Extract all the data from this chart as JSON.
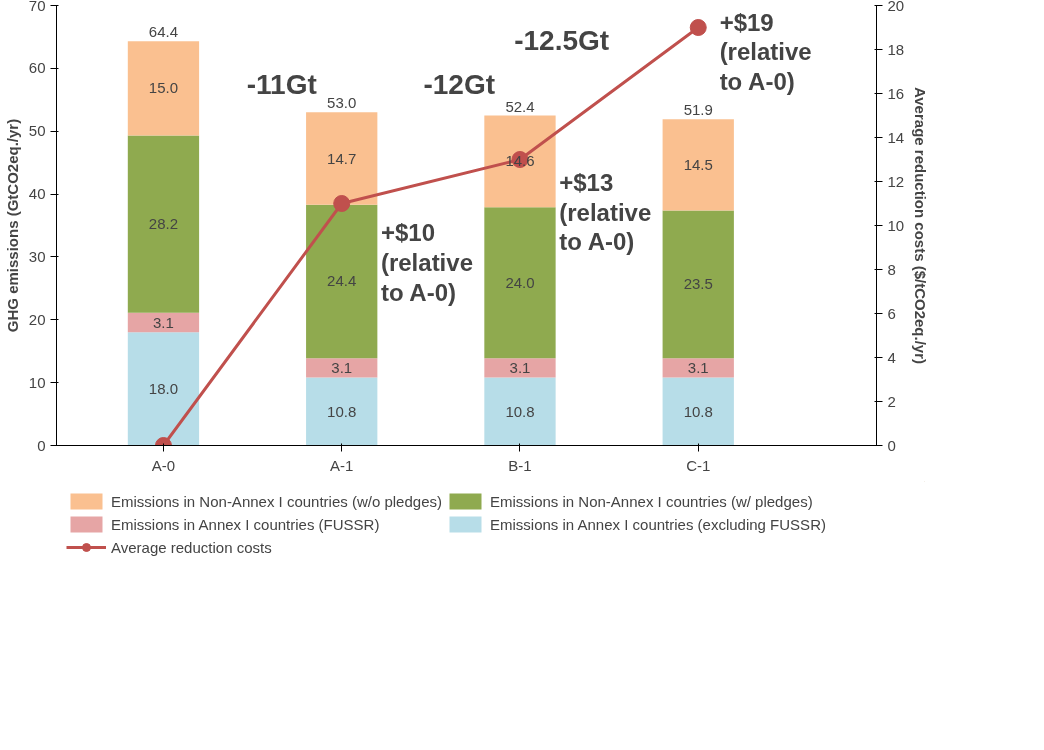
{
  "chart_data": {
    "type": "bar",
    "stacked": true,
    "categories": [
      "A-0",
      "A-1",
      "B-1",
      "C-1"
    ],
    "ylabel": "GHG emissions (GtCO2eq./yr)",
    "y2label": "Average reduction costs ($/tCO2eq./yr)",
    "ylim": [
      0,
      70
    ],
    "yticks": [
      0,
      10,
      20,
      30,
      40,
      50,
      60,
      70
    ],
    "y2lim": [
      0,
      20
    ],
    "y2ticks": [
      0,
      2,
      4,
      6,
      8,
      10,
      12,
      14,
      16,
      18,
      20
    ],
    "grid": false,
    "legend": "bottom",
    "series": [
      {
        "name": "Emissions in Annex I countries (excluding FUSSR)",
        "color": "#b7dde8",
        "values": [
          18.0,
          10.8,
          10.8,
          10.8
        ],
        "value_labels": [
          "18.0",
          "10.8",
          "10.8",
          "10.8"
        ]
      },
      {
        "name": "Emissions in Annex I countries (FUSSR)",
        "color": "#e6a5a5",
        "values": [
          3.1,
          3.1,
          3.1,
          3.1
        ],
        "value_labels": [
          "3.1",
          "3.1",
          "3.1",
          "3.1"
        ]
      },
      {
        "name": "Emissions in Non-Annex I countries (w/ pledges)",
        "color": "#8faa4f",
        "values": [
          28.2,
          24.4,
          24.0,
          23.5
        ],
        "value_labels": [
          "28.2",
          "24.4",
          "24.0",
          "23.5"
        ]
      },
      {
        "name": "Emissions in Non-Annex I countries (w/o pledges)",
        "color": "#fac090",
        "values": [
          15.0,
          14.7,
          14.6,
          14.5
        ],
        "value_labels": [
          "15.0",
          "14.7",
          "14.6",
          "14.5"
        ]
      },
      {
        "name": "Average reduction costs",
        "type": "line",
        "axis": "y2",
        "color": "#c0504d",
        "marker": "circle",
        "values": [
          0,
          11,
          13,
          19
        ]
      }
    ],
    "totals": [
      "64.4",
      "53.0",
      "52.4",
      "51.9"
    ],
    "annotations": [
      "-11Gt",
      "-12Gt",
      "-12.5Gt",
      "+$10 (relative to A-0)",
      "+$13 (relative to A-0)",
      "+$19 (relative to A-0)"
    ]
  }
}
